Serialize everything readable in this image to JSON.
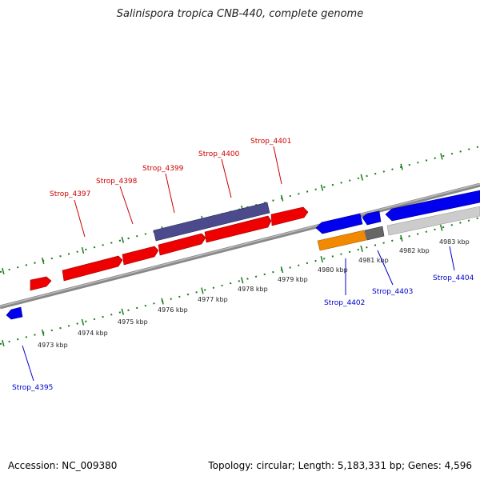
{
  "title": "Salinispora tropica CNB-440, complete genome",
  "accession": "Accession: NC_009380",
  "summary": "Topology: circular; Length: 5,183,331 bp; Genes: 4,596",
  "colors": {
    "forward": "#ee0000",
    "reverse": "#0000ee",
    "purple": "#4b4a8c",
    "orange": "#f18a00",
    "dark_grey": "#666666",
    "light_grey": "#cccccc",
    "tick": "#1a7a1a",
    "backbone": "#888888"
  },
  "ticks": [
    {
      "label": "4973 kbp",
      "kbp": 4973
    },
    {
      "label": "4974 kbp",
      "kbp": 4974
    },
    {
      "label": "4975 kbp",
      "kbp": 4975
    },
    {
      "label": "4976 kbp",
      "kbp": 4976
    },
    {
      "label": "4977 kbp",
      "kbp": 4977
    },
    {
      "label": "4978 kbp",
      "kbp": 4978
    },
    {
      "label": "4979 kbp",
      "kbp": 4979
    },
    {
      "label": "4980 kbp",
      "kbp": 4980
    },
    {
      "label": "4981 kbp",
      "kbp": 4981
    },
    {
      "label": "4982 kbp",
      "kbp": 4982
    },
    {
      "label": "4983 kbp",
      "kbp": 4983
    }
  ],
  "labels": {
    "strop_4395": "Strop_4395",
    "strop_4397": "Strop_4397",
    "strop_4398": "Strop_4398",
    "strop_4399": "Strop_4399",
    "strop_4400": "Strop_4400",
    "strop_4401": "Strop_4401",
    "strop_4402": "Strop_4402",
    "strop_4403": "Strop_4403",
    "strop_4404": "Strop_4404"
  }
}
